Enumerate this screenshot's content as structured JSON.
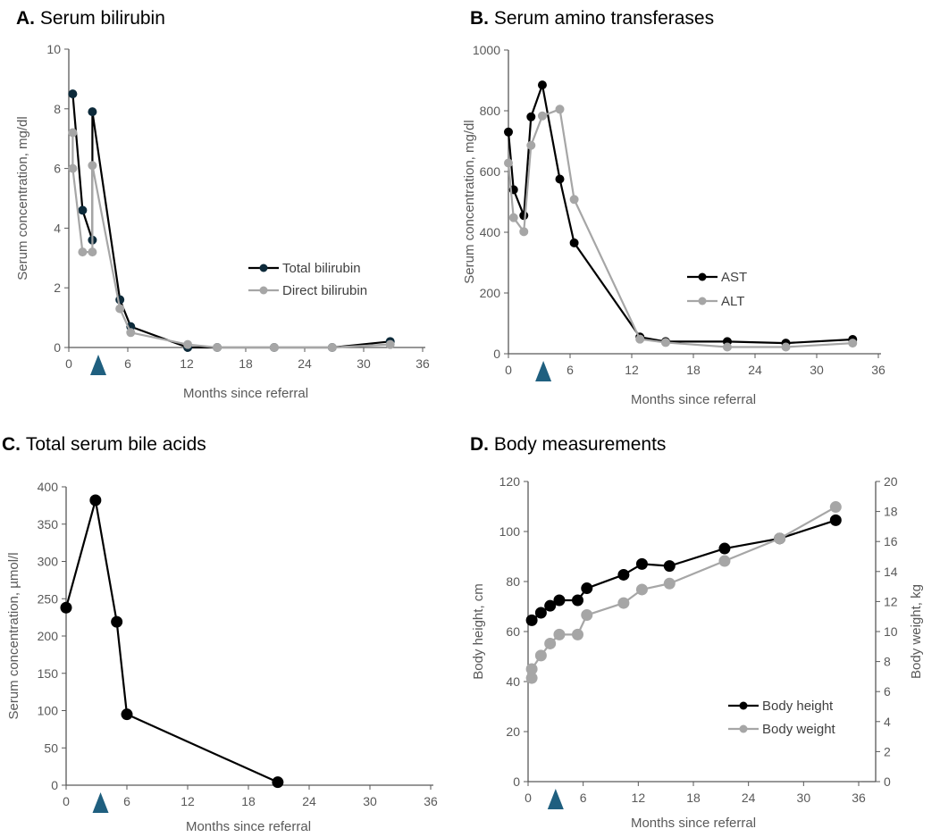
{
  "chart_data": [
    {
      "type": "line",
      "panel": "A.",
      "title": "Serum bilirubin",
      "xlabel": "Months since referral",
      "ylabel": "Serum concentration, mg/dl",
      "xlim": [
        0,
        36
      ],
      "xticks": [
        0,
        6,
        12,
        18,
        24,
        30,
        36
      ],
      "ylim": [
        0,
        10
      ],
      "yticks": [
        0,
        2,
        4,
        6,
        8,
        10
      ],
      "marker_month": 3,
      "legend": "center-right",
      "series": [
        {
          "name": "Total bilirubin",
          "color": "#000000",
          "marker_color": "#0d2a3a",
          "x": [
            0.4,
            1.4,
            2.4,
            2.4,
            5.2,
            6.3,
            12.1,
            15.1,
            20.9,
            26.8,
            32.7
          ],
          "y": [
            8.5,
            4.6,
            3.6,
            7.9,
            1.6,
            0.7,
            0.0,
            0.0,
            0.0,
            0.0,
            0.2
          ]
        },
        {
          "name": "Direct bilirubin",
          "color": "#a6a6a6",
          "marker_color": "#a6a6a6",
          "x": [
            0.4,
            0.4,
            1.4,
            2.4,
            2.4,
            5.2,
            6.3,
            12.1,
            15.1,
            20.9,
            26.8,
            32.7
          ],
          "y": [
            7.2,
            6.0,
            3.2,
            3.2,
            6.1,
            1.3,
            0.5,
            0.1,
            0.0,
            0.0,
            0.0,
            0.1
          ]
        }
      ]
    },
    {
      "type": "line",
      "panel": "B.",
      "title": "Serum amino transferases",
      "xlabel": "Months since referral",
      "ylabel": "Serum concentration, mg/dl",
      "xlim": [
        0,
        36
      ],
      "xticks": [
        0,
        6,
        12,
        18,
        24,
        30,
        36
      ],
      "ylim": [
        0,
        1000
      ],
      "yticks": [
        0,
        200,
        400,
        600,
        800,
        1000
      ],
      "marker_month": 3.4,
      "legend": "center-right",
      "series": [
        {
          "name": "AST",
          "color": "#000000",
          "marker_color": "#000000",
          "x": [
            0,
            0.5,
            1.5,
            2.2,
            3.3,
            5.0,
            6.4,
            12.8,
            15.3,
            21.3,
            27.0,
            33.5
          ],
          "y": [
            730,
            540,
            455,
            780,
            885,
            575,
            365,
            55,
            40,
            40,
            35,
            47
          ]
        },
        {
          "name": "ALT",
          "color": "#a6a6a6",
          "marker_color": "#a6a6a6",
          "x": [
            0,
            0.5,
            1.5,
            2.2,
            3.3,
            5.0,
            6.4,
            12.8,
            15.3,
            21.3,
            27.0,
            33.5
          ],
          "y": [
            628,
            448,
            402,
            686,
            783,
            805,
            508,
            48,
            37,
            22,
            22,
            35
          ]
        }
      ]
    },
    {
      "type": "line",
      "panel": "C.",
      "title": "Total serum bile acids",
      "xlabel": "Months since referral",
      "ylabel": "Serum concentration, µmol/l",
      "xlim": [
        0,
        36
      ],
      "xticks": [
        0,
        6,
        12,
        18,
        24,
        30,
        36
      ],
      "ylim": [
        0,
        400
      ],
      "yticks": [
        0,
        50,
        100,
        150,
        200,
        250,
        300,
        350,
        400
      ],
      "marker_month": 3.4,
      "series": [
        {
          "name": "Total serum bile acids",
          "color": "#000000",
          "marker_color": "#000000",
          "x": [
            0,
            2.9,
            5.0,
            6.0,
            20.9
          ],
          "y": [
            238,
            382,
            219,
            95,
            4
          ]
        }
      ]
    },
    {
      "type": "line",
      "panel": "D.",
      "title": "Body measurements",
      "xlabel": "Months since referral",
      "ylabel": "Body height, cm",
      "ylabel_right": "Body weight, kg",
      "xlim": [
        0,
        36
      ],
      "xticks": [
        0,
        6,
        12,
        18,
        24,
        30,
        36
      ],
      "ylim": [
        0,
        120
      ],
      "yticks": [
        0,
        20,
        40,
        60,
        80,
        100,
        120
      ],
      "ylim_right": [
        0,
        20
      ],
      "yticks_right": [
        0,
        2,
        4,
        6,
        8,
        10,
        12,
        14,
        16,
        18,
        20
      ],
      "marker_month": 3,
      "legend": "bottom-right",
      "series": [
        {
          "name": "Body height",
          "axis": "left",
          "color": "#000000",
          "marker_color": "#000000",
          "x": [
            0.4,
            1.4,
            2.4,
            3.4,
            5.4,
            6.4,
            10.4,
            12.4,
            15.4,
            21.4,
            27.4,
            33.5
          ],
          "y": [
            64.5,
            67.5,
            70.3,
            72.5,
            72.5,
            77.3,
            82.7,
            87.0,
            86.2,
            93.2,
            97.2,
            104.5
          ]
        },
        {
          "name": "Body weight",
          "axis": "right",
          "color": "#a6a6a6",
          "marker_color": "#a6a6a6",
          "x": [
            0.4,
            0.4,
            1.4,
            2.4,
            3.4,
            5.4,
            6.4,
            10.4,
            12.4,
            15.4,
            21.4,
            27.4,
            33.5
          ],
          "y": [
            6.9,
            7.5,
            8.4,
            9.2,
            9.8,
            9.8,
            11.1,
            11.9,
            12.8,
            13.2,
            14.7,
            16.2,
            18.3
          ]
        }
      ]
    }
  ],
  "colors": {
    "axis": "#595959",
    "marker_triangle": "#1f5f7f"
  }
}
